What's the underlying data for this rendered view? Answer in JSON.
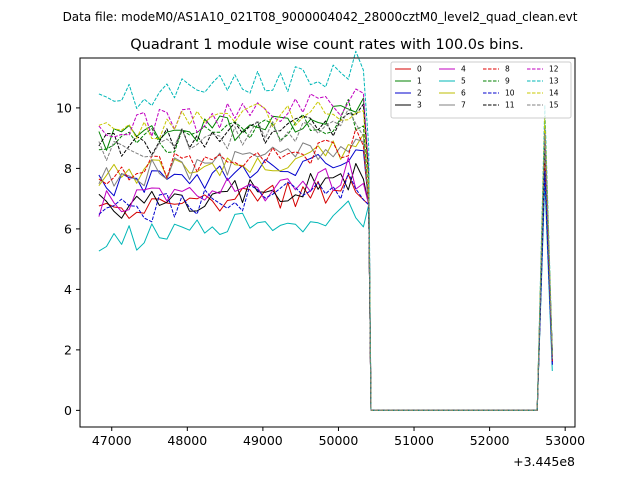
{
  "header": {
    "suptitle": "Data file: modeM0/AS1A10_021T08_9000004042_28000cztM0_level2_quad_clean.evt",
    "title": "Quadrant 1 module wise count rates with 100.0s bins."
  },
  "chart_data": {
    "type": "line",
    "title": "Quadrant 1 module wise count rates with 100.0s bins.",
    "xlabel": "",
    "ylabel": "",
    "x_offset_label": "+3.445e8",
    "x_offset": 344500000,
    "xlim": [
      46580,
      53130
    ],
    "ylim": [
      -0.55,
      11.65
    ],
    "xticks": [
      47000,
      48000,
      49000,
      50000,
      51000,
      52000,
      53000
    ],
    "xtick_labels": [
      "47000",
      "48000",
      "49000",
      "50000",
      "51000",
      "52000",
      "53000"
    ],
    "yticks": [
      0,
      2,
      4,
      6,
      8,
      10
    ],
    "ytick_labels": [
      "0",
      "2",
      "4",
      "6",
      "8",
      "10"
    ],
    "grid": false,
    "legend_position": "top-right",
    "x_start": 46830,
    "bin_width": 100,
    "n_active_bins": 36,
    "gap_start": 50430,
    "gap_end": 52630,
    "tail_x": [
      52730,
      52830
    ],
    "series": [
      {
        "name": "0",
        "color": "#d40000",
        "dash": "solid",
        "base": 6.5,
        "tail": [
          8.0,
          1.6
        ]
      },
      {
        "name": "1",
        "color": "#008000",
        "dash": "solid",
        "base": 8.9,
        "tail": [
          9.3,
          1.8
        ]
      },
      {
        "name": "2",
        "color": "#0000cc",
        "dash": "solid",
        "base": 7.4,
        "tail": [
          8.4,
          1.5
        ]
      },
      {
        "name": "3",
        "color": "#000000",
        "dash": "solid",
        "base": 6.7,
        "tail": [
          8.1,
          2.0
        ]
      },
      {
        "name": "4",
        "color": "#c000c0",
        "dash": "solid",
        "base": 6.8,
        "tail": [
          8.5,
          1.6
        ]
      },
      {
        "name": "5",
        "color": "#00b7b7",
        "dash": "solid",
        "base": 5.6,
        "tail": [
          7.6,
          1.3
        ]
      },
      {
        "name": "6",
        "color": "#bcbc00",
        "dash": "solid",
        "base": 7.7,
        "tail": [
          8.8,
          1.7
        ]
      },
      {
        "name": "7",
        "color": "#808080",
        "dash": "solid",
        "base": 7.7,
        "tail": [
          8.6,
          1.8
        ]
      },
      {
        "name": "8",
        "color": "#e00000",
        "dash": "dashed",
        "base": 7.8,
        "tail": [
          8.2,
          1.6
        ]
      },
      {
        "name": "9",
        "color": "#008000",
        "dash": "dashed",
        "base": 8.7,
        "tail": [
          9.0,
          1.7
        ]
      },
      {
        "name": "10",
        "color": "#0000cc",
        "dash": "dashed",
        "base": 6.5,
        "tail": [
          7.9,
          1.5
        ]
      },
      {
        "name": "11",
        "color": "#000000",
        "dash": "dashed",
        "base": 8.7,
        "tail": [
          9.2,
          1.9
        ]
      },
      {
        "name": "12",
        "color": "#c000c0",
        "dash": "dashed",
        "base": 9.3,
        "tail": [
          9.4,
          1.8
        ]
      },
      {
        "name": "13",
        "color": "#00b7b7",
        "dash": "dashed",
        "base": 10.3,
        "tail": [
          10.1,
          1.9
        ]
      },
      {
        "name": "14",
        "color": "#c8c800",
        "dash": "dashed",
        "base": 9.2,
        "tail": [
          9.7,
          1.8
        ]
      },
      {
        "name": "15",
        "color": "#808080",
        "dash": "dashed",
        "base": 8.6,
        "tail": [
          9.1,
          1.7
        ]
      }
    ]
  }
}
